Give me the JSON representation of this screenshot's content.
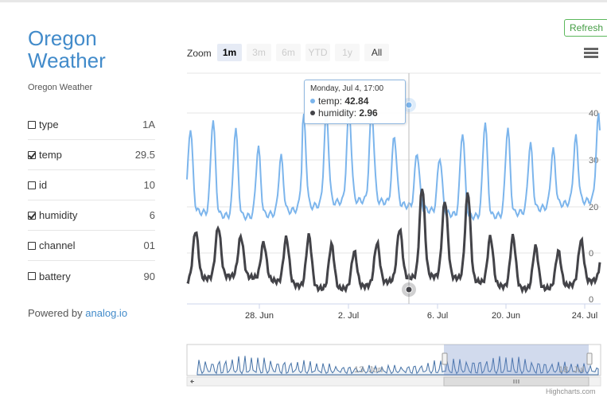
{
  "sidebar": {
    "title_line1": "Oregon",
    "title_line2": "Weather",
    "subtitle": "Oregon Weather",
    "fields": [
      {
        "name": "type",
        "value": "1A",
        "checked": false
      },
      {
        "name": "temp",
        "value": "29.5",
        "checked": true
      },
      {
        "name": "id",
        "value": "10",
        "checked": false
      },
      {
        "name": "humidity",
        "value": "6",
        "checked": true
      },
      {
        "name": "channel",
        "value": "01",
        "checked": false
      },
      {
        "name": "battery",
        "value": "90",
        "checked": false
      }
    ],
    "powered_prefix": "Powered by",
    "powered_link": "analog.io"
  },
  "toolbar": {
    "refresh_label": "Refresh",
    "zoom_label": "Zoom",
    "zoom_buttons": [
      "1m",
      "3m",
      "6m",
      "YTD",
      "1y",
      "All"
    ],
    "zoom_active": "1m"
  },
  "tooltip": {
    "header": "Monday, Jul 4, 17:00",
    "rows": [
      {
        "name": "temp",
        "value": "42.84"
      },
      {
        "name": "humidity",
        "value": "2.96"
      }
    ]
  },
  "credits": "Highcharts.com",
  "colors": {
    "temp": "#7cb5ec",
    "humidity": "#434348",
    "accent": "#428bca",
    "navigator": "#4572a7"
  },
  "chart_data": {
    "type": "line",
    "x_ticks": [
      "28. Jun",
      "2. Jul",
      "6. Jul",
      "20. Jun",
      "24. Jul"
    ],
    "y_ticks": [
      "40",
      "30",
      "20",
      "0",
      "0"
    ],
    "navigator_ticks": [
      "13. Jun",
      "18. Jul"
    ],
    "series": [
      {
        "name": "temp"
      },
      {
        "name": "humidity"
      }
    ],
    "tooltip_point": {
      "temp": 42.84,
      "humidity": 2.96
    }
  }
}
